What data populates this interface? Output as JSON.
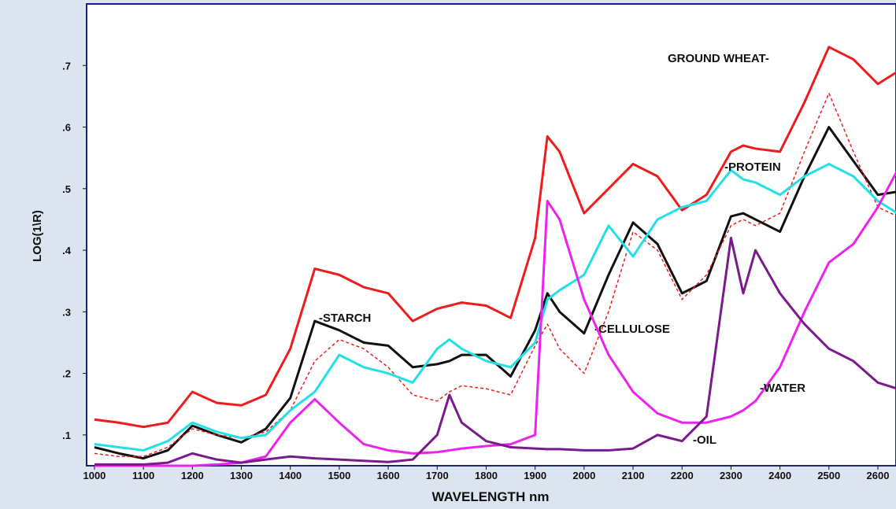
{
  "chart_data": {
    "type": "line",
    "x_label": "WAVELENGTH nm",
    "y_label": "LOG(1\\R)",
    "xlim": [
      984,
      2637
    ],
    "ylim": [
      0.05,
      0.8
    ],
    "xticks": [
      1000,
      1100,
      1200,
      1300,
      1400,
      1500,
      1600,
      1700,
      1800,
      1900,
      2000,
      2100,
      2200,
      2300,
      2400,
      2500,
      2600
    ],
    "yticks": [
      {
        "value": 0.1,
        "label": ".1"
      },
      {
        "value": 0.2,
        "label": ".2"
      },
      {
        "value": 0.3,
        "label": ".3"
      },
      {
        "value": 0.4,
        "label": ".4"
      },
      {
        "value": 0.5,
        "label": ".5"
      },
      {
        "value": 0.6,
        "label": ".6"
      },
      {
        "value": 0.7,
        "label": ".7"
      }
    ],
    "x": [
      1000,
      1050,
      1100,
      1150,
      1200,
      1250,
      1300,
      1350,
      1400,
      1450,
      1500,
      1550,
      1600,
      1650,
      1700,
      1725,
      1750,
      1800,
      1850,
      1900,
      1925,
      1950,
      2000,
      2050,
      2100,
      2150,
      2200,
      2250,
      2300,
      2325,
      2350,
      2400,
      2450,
      2500,
      2550,
      2600,
      2640
    ],
    "series": [
      {
        "name": "GROUND WHEAT-",
        "color": "#ee1c1c",
        "dashed": false,
        "values": [
          0.125,
          0.12,
          0.113,
          0.12,
          0.17,
          0.152,
          0.148,
          0.165,
          0.24,
          0.37,
          0.36,
          0.34,
          0.33,
          0.285,
          0.305,
          0.31,
          0.315,
          0.31,
          0.29,
          0.42,
          0.585,
          0.56,
          0.46,
          0.5,
          0.54,
          0.52,
          0.465,
          0.49,
          0.56,
          0.57,
          0.565,
          0.56,
          0.64,
          0.73,
          0.71,
          0.67,
          0.69
        ]
      },
      {
        "name": "-STARCH",
        "color": "#111111",
        "dashed": false,
        "values": [
          0.08,
          0.07,
          0.062,
          0.075,
          0.115,
          0.1,
          0.088,
          0.11,
          0.16,
          0.285,
          0.27,
          0.25,
          0.245,
          0.21,
          0.215,
          0.22,
          0.23,
          0.23,
          0.195,
          0.27,
          0.33,
          0.3,
          0.265,
          0.36,
          0.445,
          0.41,
          0.33,
          0.35,
          0.455,
          0.46,
          0.45,
          0.43,
          0.52,
          0.6,
          0.545,
          0.49,
          0.495
        ]
      },
      {
        "name": "-CELLULOSE",
        "color": "#ee1c1c",
        "dashed": true,
        "values": [
          0.07,
          0.065,
          0.065,
          0.08,
          0.11,
          0.1,
          0.095,
          0.105,
          0.14,
          0.22,
          0.255,
          0.24,
          0.21,
          0.165,
          0.155,
          0.17,
          0.18,
          0.175,
          0.165,
          0.245,
          0.28,
          0.24,
          0.2,
          0.3,
          0.43,
          0.4,
          0.32,
          0.36,
          0.44,
          0.45,
          0.44,
          0.46,
          0.56,
          0.655,
          0.56,
          0.47,
          0.455
        ]
      },
      {
        "name": "-PROTEIN",
        "color": "#22e0e6",
        "dashed": false,
        "values": [
          0.085,
          0.08,
          0.075,
          0.09,
          0.12,
          0.105,
          0.095,
          0.1,
          0.14,
          0.17,
          0.23,
          0.21,
          0.2,
          0.185,
          0.24,
          0.255,
          0.24,
          0.22,
          0.21,
          0.25,
          0.32,
          0.335,
          0.36,
          0.44,
          0.39,
          0.45,
          0.47,
          0.48,
          0.53,
          0.515,
          0.51,
          0.49,
          0.52,
          0.54,
          0.52,
          0.48,
          0.46
        ]
      },
      {
        "name": "-WATER",
        "color": "#ee22ee",
        "dashed": false,
        "values": [
          0.05,
          0.05,
          0.05,
          0.05,
          0.05,
          0.052,
          0.055,
          0.065,
          0.12,
          0.158,
          0.12,
          0.085,
          0.075,
          0.07,
          0.072,
          0.075,
          0.078,
          0.082,
          0.085,
          0.1,
          0.48,
          0.45,
          0.32,
          0.23,
          0.17,
          0.135,
          0.12,
          0.12,
          0.13,
          0.14,
          0.155,
          0.21,
          0.3,
          0.38,
          0.41,
          0.47,
          0.53
        ]
      },
      {
        "name": "-OIL",
        "color": "#7b1a8c",
        "dashed": false,
        "values": [
          0.052,
          0.052,
          0.052,
          0.055,
          0.07,
          0.06,
          0.055,
          0.06,
          0.065,
          0.062,
          0.06,
          0.058,
          0.056,
          0.06,
          0.1,
          0.165,
          0.12,
          0.09,
          0.08,
          0.078,
          0.077,
          0.077,
          0.075,
          0.075,
          0.078,
          0.1,
          0.09,
          0.13,
          0.42,
          0.33,
          0.4,
          0.33,
          0.28,
          0.24,
          0.22,
          0.185,
          0.175
        ]
      }
    ]
  }
}
